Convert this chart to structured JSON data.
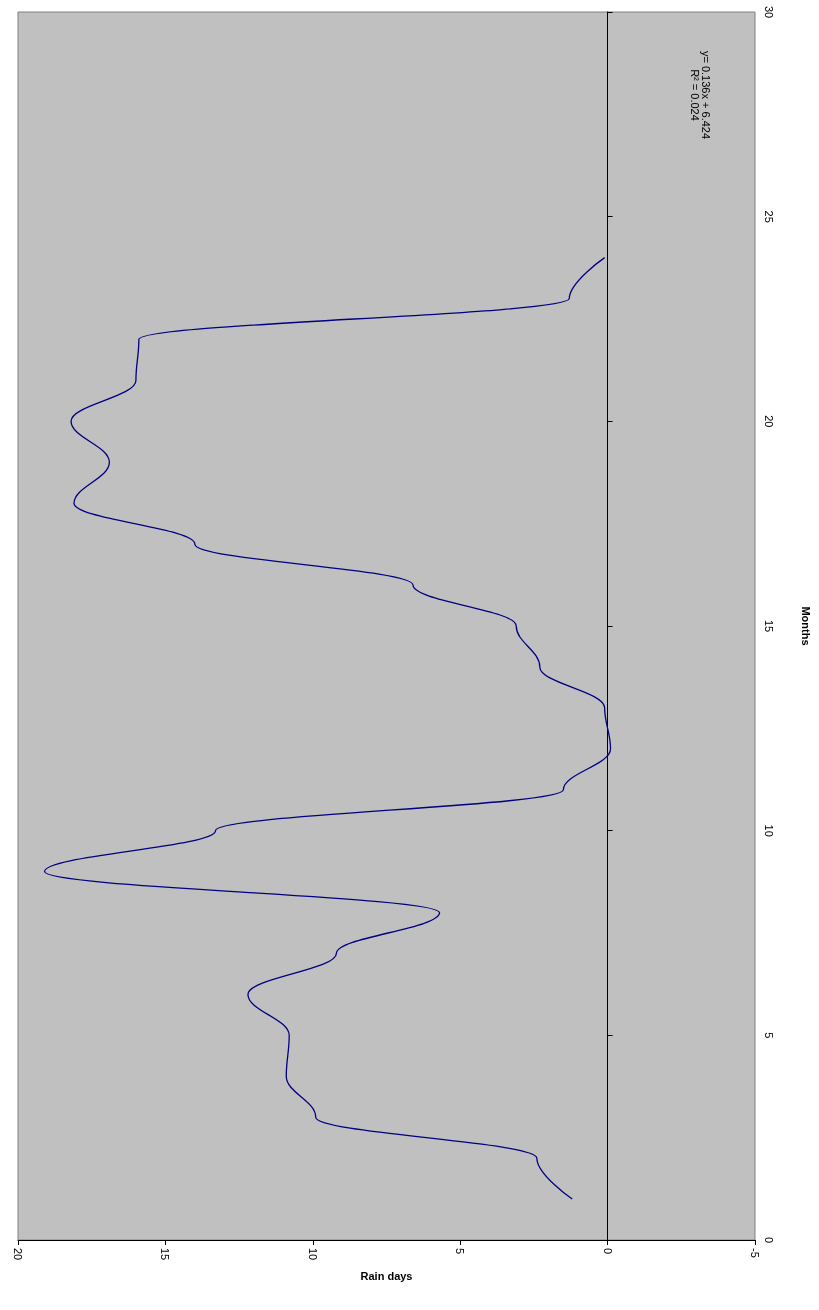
{
  "chart_data": {
    "type": "line",
    "xlabel": "Rain days",
    "ylabel": "Months",
    "series": [
      {
        "color": "#000080",
        "x": [
          1.2,
          2.4,
          9.9,
          10.9,
          10.8,
          12.2,
          9.2,
          5.7,
          19.1,
          13.3,
          1.5,
          -0.1,
          0.1,
          2.3,
          3.1,
          6.6,
          14.0,
          18.1,
          16.9,
          18.2,
          16.0,
          15.9,
          1.3,
          0.1
        ],
        "values": [
          1,
          2,
          3,
          4,
          5,
          6,
          7,
          8,
          9,
          10,
          11,
          12,
          13,
          14,
          15,
          16,
          17,
          18,
          19,
          20,
          21,
          22,
          23,
          24
        ]
      }
    ],
    "xlim": [
      20,
      -5
    ],
    "xticks": [
      -5,
      0,
      5,
      10,
      15,
      20
    ],
    "ylim": [
      0,
      30
    ],
    "yticks": [
      0,
      5,
      10,
      15,
      20,
      25,
      30
    ],
    "annotations": [
      "y= 0.136x + 6.424\nR² = 0.024"
    ],
    "marker": "none",
    "line_style": "solid"
  }
}
